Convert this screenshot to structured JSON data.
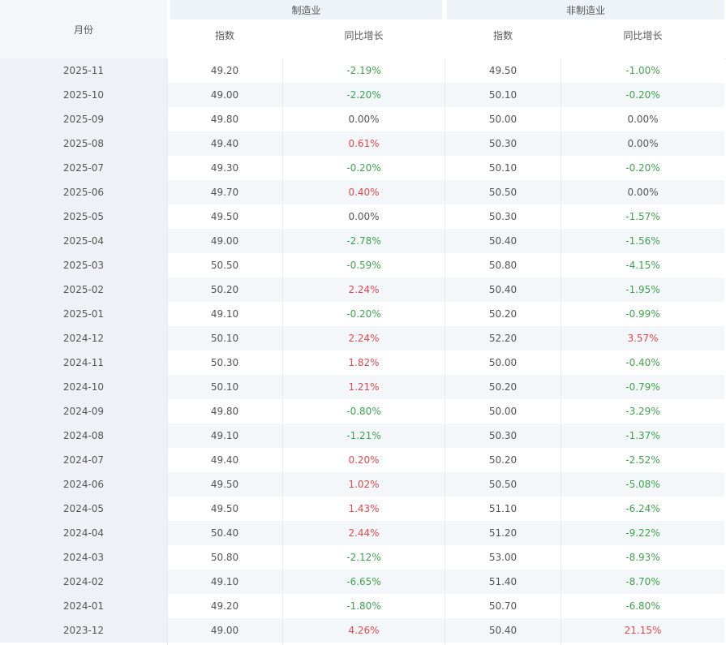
{
  "header": {
    "month": "月份",
    "group_manufacturing": "制造业",
    "group_non_manufacturing": "非制造业",
    "col_index": "指数",
    "col_yoy": "同比增长"
  },
  "colors": {
    "positive": "#e5484d",
    "negative": "#3fa34d",
    "neutral": "#555555"
  },
  "rows": [
    {
      "month": "2025-11",
      "m_index": "49.20",
      "m_yoy": "-2.19%",
      "n_index": "49.50",
      "n_yoy": "-1.00%"
    },
    {
      "month": "2025-10",
      "m_index": "49.00",
      "m_yoy": "-2.20%",
      "n_index": "50.10",
      "n_yoy": "-0.20%"
    },
    {
      "month": "2025-09",
      "m_index": "49.80",
      "m_yoy": "0.00%",
      "n_index": "50.00",
      "n_yoy": "0.00%"
    },
    {
      "month": "2025-08",
      "m_index": "49.40",
      "m_yoy": "0.61%",
      "n_index": "50.30",
      "n_yoy": "0.00%"
    },
    {
      "month": "2025-07",
      "m_index": "49.30",
      "m_yoy": "-0.20%",
      "n_index": "50.10",
      "n_yoy": "-0.20%"
    },
    {
      "month": "2025-06",
      "m_index": "49.70",
      "m_yoy": "0.40%",
      "n_index": "50.50",
      "n_yoy": "0.00%"
    },
    {
      "month": "2025-05",
      "m_index": "49.50",
      "m_yoy": "0.00%",
      "n_index": "50.30",
      "n_yoy": "-1.57%"
    },
    {
      "month": "2025-04",
      "m_index": "49.00",
      "m_yoy": "-2.78%",
      "n_index": "50.40",
      "n_yoy": "-1.56%"
    },
    {
      "month": "2025-03",
      "m_index": "50.50",
      "m_yoy": "-0.59%",
      "n_index": "50.80",
      "n_yoy": "-4.15%"
    },
    {
      "month": "2025-02",
      "m_index": "50.20",
      "m_yoy": "2.24%",
      "n_index": "50.40",
      "n_yoy": "-1.95%"
    },
    {
      "month": "2025-01",
      "m_index": "49.10",
      "m_yoy": "-0.20%",
      "n_index": "50.20",
      "n_yoy": "-0.99%"
    },
    {
      "month": "2024-12",
      "m_index": "50.10",
      "m_yoy": "2.24%",
      "n_index": "52.20",
      "n_yoy": "3.57%"
    },
    {
      "month": "2024-11",
      "m_index": "50.30",
      "m_yoy": "1.82%",
      "n_index": "50.00",
      "n_yoy": "-0.40%"
    },
    {
      "month": "2024-10",
      "m_index": "50.10",
      "m_yoy": "1.21%",
      "n_index": "50.20",
      "n_yoy": "-0.79%"
    },
    {
      "month": "2024-09",
      "m_index": "49.80",
      "m_yoy": "-0.80%",
      "n_index": "50.00",
      "n_yoy": "-3.29%"
    },
    {
      "month": "2024-08",
      "m_index": "49.10",
      "m_yoy": "-1.21%",
      "n_index": "50.30",
      "n_yoy": "-1.37%"
    },
    {
      "month": "2024-07",
      "m_index": "49.40",
      "m_yoy": "0.20%",
      "n_index": "50.20",
      "n_yoy": "-2.52%"
    },
    {
      "month": "2024-06",
      "m_index": "49.50",
      "m_yoy": "1.02%",
      "n_index": "50.50",
      "n_yoy": "-5.08%"
    },
    {
      "month": "2024-05",
      "m_index": "49.50",
      "m_yoy": "1.43%",
      "n_index": "51.10",
      "n_yoy": "-6.24%"
    },
    {
      "month": "2024-04",
      "m_index": "50.40",
      "m_yoy": "2.44%",
      "n_index": "51.20",
      "n_yoy": "-9.22%"
    },
    {
      "month": "2024-03",
      "m_index": "50.80",
      "m_yoy": "-2.12%",
      "n_index": "53.00",
      "n_yoy": "-8.93%"
    },
    {
      "month": "2024-02",
      "m_index": "49.10",
      "m_yoy": "-6.65%",
      "n_index": "51.40",
      "n_yoy": "-8.70%"
    },
    {
      "month": "2024-01",
      "m_index": "49.20",
      "m_yoy": "-1.80%",
      "n_index": "50.70",
      "n_yoy": "-6.80%"
    },
    {
      "month": "2023-12",
      "m_index": "49.00",
      "m_yoy": "4.26%",
      "n_index": "50.40",
      "n_yoy": "21.15%"
    }
  ]
}
